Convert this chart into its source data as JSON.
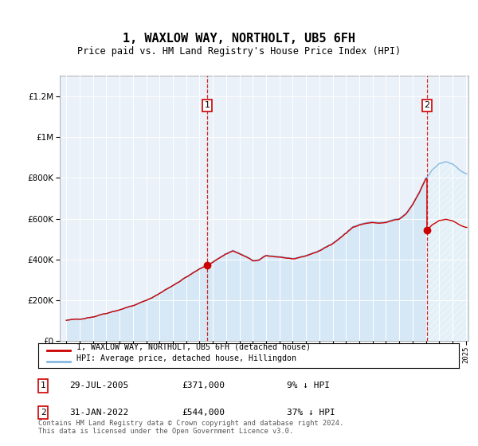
{
  "title": "1, WAXLOW WAY, NORTHOLT, UB5 6FH",
  "subtitle": "Price paid vs. HM Land Registry's House Price Index (HPI)",
  "ylim": [
    0,
    1300000
  ],
  "yticks": [
    0,
    200000,
    400000,
    600000,
    800000,
    1000000,
    1200000
  ],
  "sale1_date": 2005.57,
  "sale1_price": 371000,
  "sale2_date": 2022.08,
  "sale2_price": 544000,
  "legend_line1": "1, WAXLOW WAY, NORTHOLT, UB5 6FH (detached house)",
  "legend_line2": "HPI: Average price, detached house, Hillingdon",
  "footer": "Contains HM Land Registry data © Crown copyright and database right 2024.\nThis data is licensed under the Open Government Licence v3.0.",
  "hpi_color": "#85b8e0",
  "sale_color": "#cc0000",
  "hpi_fill_color": "#d6e8f5",
  "plot_bg": "#eaf1f8",
  "label1_box": "1",
  "label2_box": "2",
  "ann1_date": "29-JUL-2005",
  "ann1_price": "£371,000",
  "ann1_hpi": "9% ↓ HPI",
  "ann2_date": "31-JAN-2022",
  "ann2_price": "£544,000",
  "ann2_hpi": "37% ↓ HPI"
}
